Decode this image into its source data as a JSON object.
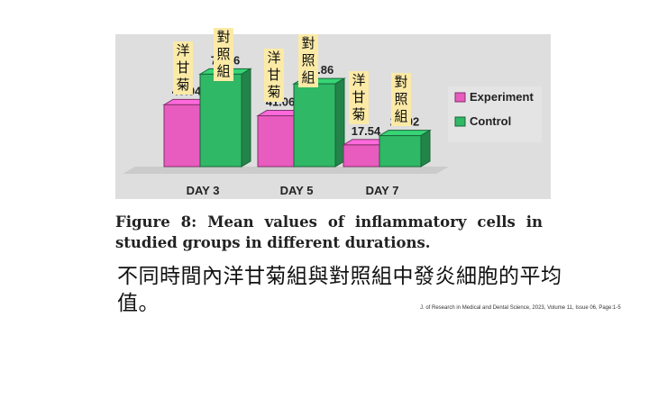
{
  "chart_data": {
    "type": "bar",
    "categories": [
      "DAY 3",
      "DAY 5",
      "DAY 7"
    ],
    "series": [
      {
        "name": "Experiment",
        "values": [
          49.94,
          41.06,
          17.54
        ],
        "color": "#e85bbf"
      },
      {
        "name": "Control",
        "values": [
          74.66,
          66.86,
          25.02
        ],
        "color": "#2fb866"
      }
    ],
    "ylim": [
      0,
      80
    ],
    "grid": false,
    "legend": "right",
    "title": "",
    "xlabel": "",
    "ylabel": ""
  },
  "annotations": {
    "experiment_label": "洋甘菊",
    "control_label": "對照組"
  },
  "colors": {
    "chart_background": "#dedede",
    "floor": "#cbcbcb",
    "label_highlight": "#fbeaa6"
  },
  "figure_caption": "Figure 8: Mean values of inflammatory cells in studied groups in different durations.",
  "chinese_caption": "不同時間內洋甘菊組與對照組中發炎細胞的平均值。",
  "citation": "J. of Research in Medical and Dental Science, 2023, Volume 11, Issue 06, Page:1-5"
}
